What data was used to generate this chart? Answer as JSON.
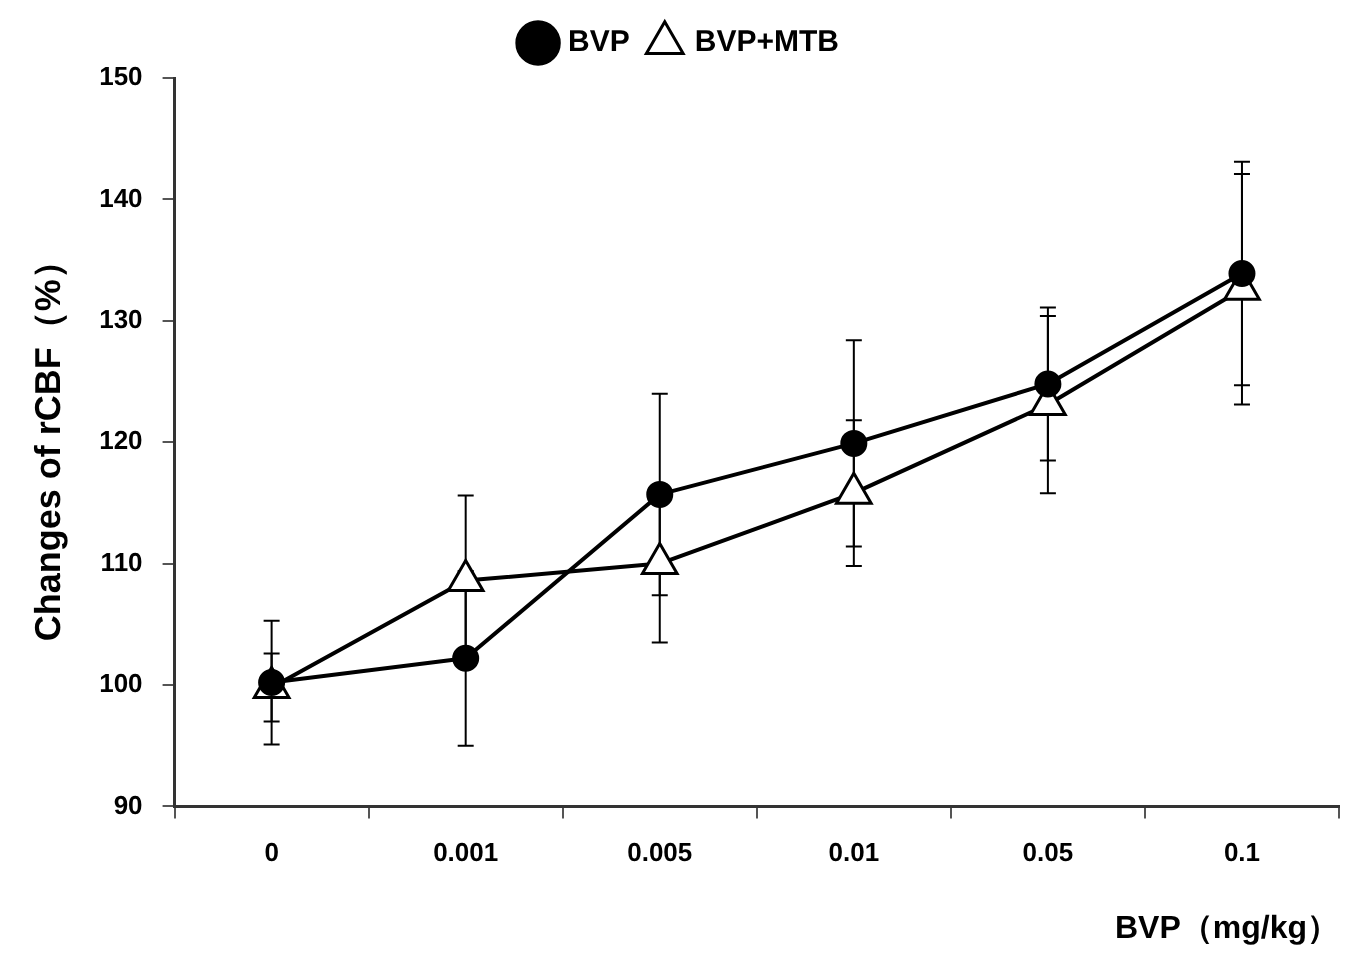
{
  "chart_data": {
    "type": "line",
    "xlabel": "BVP（mg/kg）",
    "ylabel": "Changes of rCBF（%）",
    "categories": [
      "0",
      "0.001",
      "0.005",
      "0.01",
      "0.05",
      "0.1"
    ],
    "ylim": [
      90,
      150
    ],
    "yticks": [
      90,
      100,
      110,
      120,
      130,
      140,
      150
    ],
    "legend": "top",
    "line_style": "solid",
    "series": [
      {
        "name": "BVP",
        "color": "#000000",
        "marker": "circle",
        "values": [
          100.2,
          102.2,
          115.7,
          119.9,
          124.8,
          133.9
        ],
        "errors": [
          5.1,
          7.2,
          8.3,
          8.5,
          6.3,
          9.2
        ]
      },
      {
        "name": "BVP+MTB",
        "color": "#000000",
        "marker": "triangle",
        "values": [
          99.8,
          108.6,
          110,
          115.8,
          123.1,
          132.6
        ],
        "errors": [
          2.8,
          7,
          6.5,
          6,
          7.3,
          9.5
        ]
      }
    ]
  }
}
